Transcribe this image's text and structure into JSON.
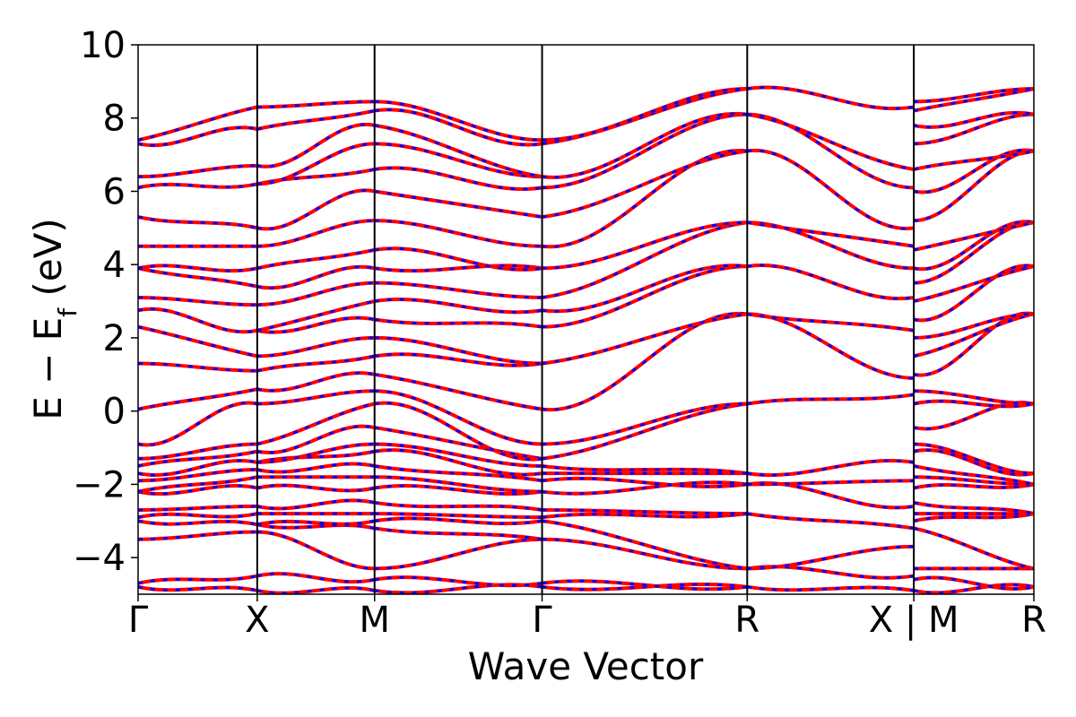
{
  "chart_data": {
    "type": "line",
    "title": "",
    "xlabel": "Wave Vector",
    "ylabel_main": "E − E",
    "ylabel_sub": "f",
    "ylabel_unit": " (eV)",
    "ylim": [
      -5,
      10
    ],
    "yticks": [
      {
        "value": -4,
        "label": "−4"
      },
      {
        "value": -2,
        "label": "−2"
      },
      {
        "value": 0,
        "label": "0"
      },
      {
        "value": 2,
        "label": "2"
      },
      {
        "value": 4,
        "label": "4"
      },
      {
        "value": 6,
        "label": "6"
      },
      {
        "value": 8,
        "label": "8"
      },
      {
        "value": 10,
        "label": "10"
      }
    ],
    "xlim": [
      0,
      1
    ],
    "kpoints": [
      {
        "value": 0.0,
        "label": "Γ"
      },
      {
        "value": 0.133,
        "label": "X"
      },
      {
        "value": 0.264,
        "label": "M"
      },
      {
        "value": 0.451,
        "label": "Γ"
      },
      {
        "value": 0.68,
        "label": "R"
      },
      {
        "value": 0.866,
        "label": "X | M"
      },
      {
        "value": 1.0,
        "label": "R"
      }
    ],
    "segments": [
      {
        "from": "Γ",
        "to": "X",
        "x0": 0.0,
        "x1": 0.133
      },
      {
        "from": "X",
        "to": "M",
        "x0": 0.133,
        "x1": 0.264
      },
      {
        "from": "M",
        "to": "Γ",
        "x0": 0.264,
        "x1": 0.451
      },
      {
        "from": "Γ",
        "to": "R",
        "x0": 0.451,
        "x1": 0.68
      },
      {
        "from": "R",
        "to": "X",
        "x0": 0.68,
        "x1": 0.866
      },
      {
        "from": "M",
        "to": "R",
        "x0": 0.866,
        "x1": 1.0
      }
    ],
    "series_styles": [
      {
        "style": "solid",
        "color": "#ff0000"
      },
      {
        "style": "dashed",
        "color": "#0000ff"
      }
    ],
    "band_energies": {
      "Γ": [
        -4.8,
        -4.7,
        -3.5,
        -3.0,
        -2.9,
        -2.7,
        -2.2,
        -1.9,
        -1.7,
        -1.5,
        -1.3,
        -0.9,
        0.05,
        1.3,
        2.3,
        2.75,
        3.1,
        3.9,
        4.5,
        5.3,
        6.1,
        6.4,
        7.3,
        7.4
      ],
      "X": [
        -4.9,
        -4.5,
        -3.3,
        -3.1,
        -2.8,
        -2.6,
        -2.1,
        -1.8,
        -1.6,
        -1.4,
        -1.1,
        -0.9,
        0.2,
        0.6,
        1.1,
        1.5,
        2.2,
        2.9,
        3.4,
        3.9,
        4.5,
        5.0,
        6.2,
        6.7,
        7.7,
        8.3
      ],
      "M": [
        -4.9,
        -4.6,
        -4.3,
        -3.2,
        -3.0,
        -2.8,
        -2.5,
        -2.1,
        -1.8,
        -1.5,
        -1.1,
        -0.9,
        -0.45,
        0.2,
        0.55,
        1.0,
        1.5,
        2.0,
        2.5,
        3.0,
        3.5,
        3.9,
        4.4,
        5.2,
        6.0,
        6.6,
        7.3,
        7.8,
        8.2,
        8.45
      ],
      "Γ2": [
        -4.8,
        -4.7,
        -3.5,
        -3.0,
        -2.9,
        -2.7,
        -2.2,
        -1.9,
        -1.7,
        -1.5,
        -1.3,
        -0.9,
        0.05,
        1.3,
        2.3,
        2.75,
        3.1,
        3.9,
        4.5,
        5.3,
        6.1,
        6.4,
        7.3,
        7.4
      ],
      "R": [
        -4.8,
        -4.3,
        -2.8,
        -2.0,
        -1.7,
        0.2,
        2.65,
        3.95,
        5.15,
        7.1,
        8.1,
        8.8
      ],
      "X2": [
        -4.9,
        -4.5,
        -3.7,
        -3.2,
        -2.6,
        -1.9,
        -1.4,
        0.45,
        0.9,
        2.2,
        3.1,
        3.9,
        4.5,
        5.0,
        6.1,
        6.6,
        8.3
      ],
      "M2": [
        -4.9,
        -4.6,
        -4.3,
        -3.2,
        -3.0,
        -2.8,
        -2.5,
        -2.1,
        -1.8,
        -1.5,
        -1.1,
        -0.9,
        -0.45,
        0.2,
        0.55,
        1.0,
        1.5,
        2.0,
        2.5,
        3.0,
        3.5,
        3.9,
        4.4,
        5.2,
        6.0,
        6.6,
        7.3,
        7.8,
        8.2,
        8.45
      ],
      "R2": [
        -4.8,
        -4.3,
        -2.8,
        -2.0,
        -1.7,
        0.2,
        2.65,
        3.95,
        5.15,
        7.1,
        8.1,
        8.8
      ]
    }
  }
}
